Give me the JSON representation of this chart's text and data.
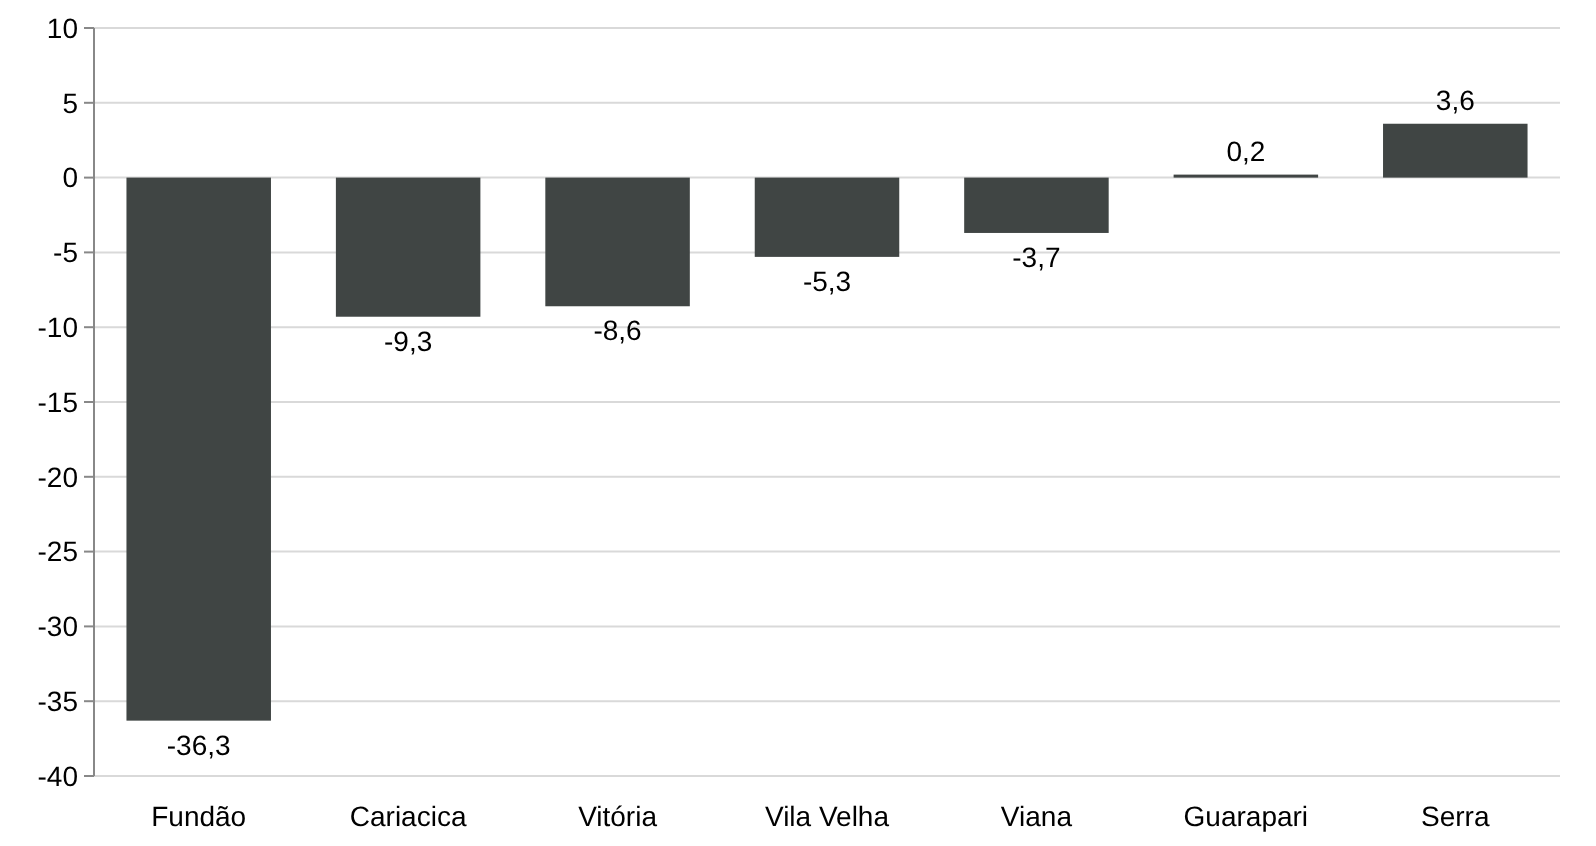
{
  "chart_data": {
    "type": "bar",
    "categories": [
      "Fundão",
      "Cariacica",
      "Vitória",
      "Vila Velha",
      "Viana",
      "Guarapari",
      "Serra"
    ],
    "values": [
      -36.3,
      -9.3,
      -8.6,
      -5.3,
      -3.7,
      0.2,
      3.6
    ],
    "value_labels": [
      "-36,3",
      "-9,3",
      "-8,6",
      "-5,3",
      "-3,7",
      "0,2",
      "3,6"
    ],
    "color": "#404544",
    "ylim": [
      -40,
      10
    ],
    "yticks": [
      -40,
      -35,
      -30,
      -25,
      -20,
      -15,
      -10,
      -5,
      0,
      5,
      10
    ],
    "grid": "y"
  }
}
